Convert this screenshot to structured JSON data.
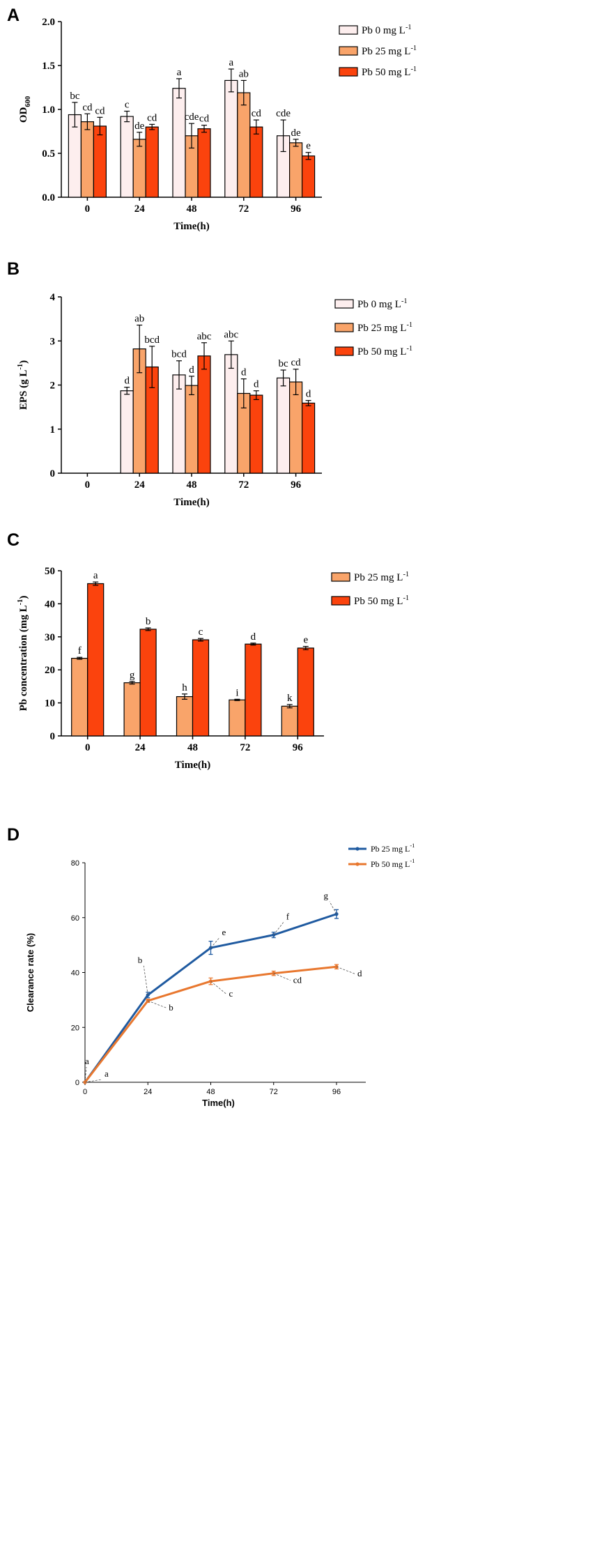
{
  "colors": {
    "pb0": "#fdeeee",
    "pb25": "#f9a46a",
    "pb50": "#fb430d",
    "line25": "#1f5aa0",
    "line50": "#e8772e"
  },
  "chart_data": [
    {
      "type": "bar",
      "panel": "A",
      "xlabel": "Time(h)",
      "ylabel": "OD",
      "ylabel_sub": "600",
      "ylim": [
        0,
        2.0
      ],
      "yticks": [
        "0.0",
        "0.5",
        "1.0",
        "1.5",
        "2.0"
      ],
      "categories": [
        "0",
        "24",
        "48",
        "72",
        "96"
      ],
      "series": [
        {
          "name": "Pb 0 mg L",
          "legend_sup": "-1",
          "color_key": "pb0",
          "values": [
            0.94,
            0.92,
            1.24,
            1.33,
            0.7
          ],
          "errors": [
            0.14,
            0.06,
            0.11,
            0.13,
            0.18
          ],
          "letters": [
            "bc",
            "c",
            "a",
            "a",
            "cde"
          ]
        },
        {
          "name": "Pb 25 mg L",
          "legend_sup": "-1",
          "color_key": "pb25",
          "values": [
            0.86,
            0.66,
            0.7,
            1.19,
            0.62
          ],
          "errors": [
            0.09,
            0.08,
            0.14,
            0.14,
            0.04
          ],
          "letters": [
            "cd",
            "de",
            "cde",
            "ab",
            "de"
          ]
        },
        {
          "name": "Pb 50 mg L",
          "legend_sup": "-1",
          "color_key": "pb50",
          "values": [
            0.81,
            0.8,
            0.78,
            0.8,
            0.47
          ],
          "errors": [
            0.1,
            0.03,
            0.04,
            0.08,
            0.04
          ],
          "letters": [
            "cd",
            "cd",
            "cd",
            "cd",
            "e"
          ]
        }
      ]
    },
    {
      "type": "bar",
      "panel": "B",
      "xlabel": "Time(h)",
      "ylabel": "EPS (g L",
      "ylabel_sup": "-1",
      "ylabel_end": ")",
      "ylim": [
        0,
        4
      ],
      "yticks": [
        "0",
        "1",
        "2",
        "3",
        "4"
      ],
      "categories": [
        "0",
        "24",
        "48",
        "72",
        "96"
      ],
      "series": [
        {
          "name": "Pb 0 mg L",
          "legend_sup": "-1",
          "color_key": "pb0",
          "values": [
            null,
            1.87,
            2.23,
            2.69,
            2.16
          ],
          "errors": [
            null,
            0.08,
            0.32,
            0.31,
            0.18
          ],
          "letters": [
            "",
            "d",
            "bcd",
            "abc",
            "bc"
          ]
        },
        {
          "name": "Pb 25 mg L",
          "legend_sup": "-1",
          "color_key": "pb25",
          "values": [
            null,
            2.82,
            1.99,
            1.81,
            2.07
          ],
          "errors": [
            null,
            0.54,
            0.21,
            0.33,
            0.29
          ],
          "letters": [
            "",
            "ab",
            "d",
            "d",
            "cd"
          ]
        },
        {
          "name": "Pb 50 mg L",
          "legend_sup": "-1",
          "color_key": "pb50",
          "values": [
            null,
            2.41,
            2.66,
            1.77,
            1.59
          ],
          "errors": [
            null,
            0.47,
            0.3,
            0.1,
            0.06
          ],
          "letters": [
            "",
            "bcd",
            "abc",
            "d",
            "d"
          ]
        }
      ]
    },
    {
      "type": "bar",
      "panel": "C",
      "xlabel": "Time(h)",
      "ylabel": "Pb concentration (mg L",
      "ylabel_sup": "-1",
      "ylabel_end": ")",
      "ylim": [
        0,
        50
      ],
      "yticks": [
        "0",
        "10",
        "20",
        "30",
        "40",
        "50"
      ],
      "categories": [
        "0",
        "24",
        "48",
        "72",
        "96"
      ],
      "series": [
        {
          "name": "Pb 25 mg L",
          "legend_sup": "-1",
          "color_key": "pb25",
          "values": [
            23.5,
            16.1,
            11.9,
            10.9,
            9.0
          ],
          "errors": [
            0.3,
            0.4,
            0.8,
            0.2,
            0.5
          ],
          "letters": [
            "f",
            "g",
            "h",
            "i",
            "k"
          ]
        },
        {
          "name": "Pb 50 mg L",
          "legend_sup": "-1",
          "color_key": "pb50",
          "values": [
            46.1,
            32.3,
            29.1,
            27.8,
            26.6
          ],
          "errors": [
            0.5,
            0.4,
            0.4,
            0.3,
            0.5
          ],
          "letters": [
            "a",
            "b",
            "c",
            "d",
            "e"
          ]
        }
      ]
    },
    {
      "type": "line",
      "panel": "D",
      "xlabel": "Time(h)",
      "ylabel": "Clearance rate (%)",
      "ylim": [
        0,
        80
      ],
      "yticks": [
        "0",
        "20",
        "40",
        "60",
        "80"
      ],
      "x": [
        0,
        24,
        48,
        72,
        96
      ],
      "xticks": [
        "0",
        "24",
        "48",
        "72",
        "96"
      ],
      "series": [
        {
          "name": "Pb 25 mg L",
          "legend_sup": "-1",
          "color_key": "line25",
          "values": [
            0,
            31.8,
            49.0,
            53.7,
            61.3
          ],
          "errors": [
            0,
            1.0,
            2.4,
            1.0,
            1.6
          ],
          "letters": [
            "a",
            "b",
            "e",
            "f",
            "g"
          ]
        },
        {
          "name": "Pb 50 mg L",
          "legend_sup": "-1",
          "color_key": "line50",
          "values": [
            0,
            29.7,
            36.8,
            39.7,
            42.1
          ],
          "errors": [
            0,
            0.6,
            1.2,
            0.8,
            0.8
          ],
          "letters": [
            "a",
            "b",
            "c",
            "cd",
            "d"
          ]
        }
      ]
    }
  ]
}
